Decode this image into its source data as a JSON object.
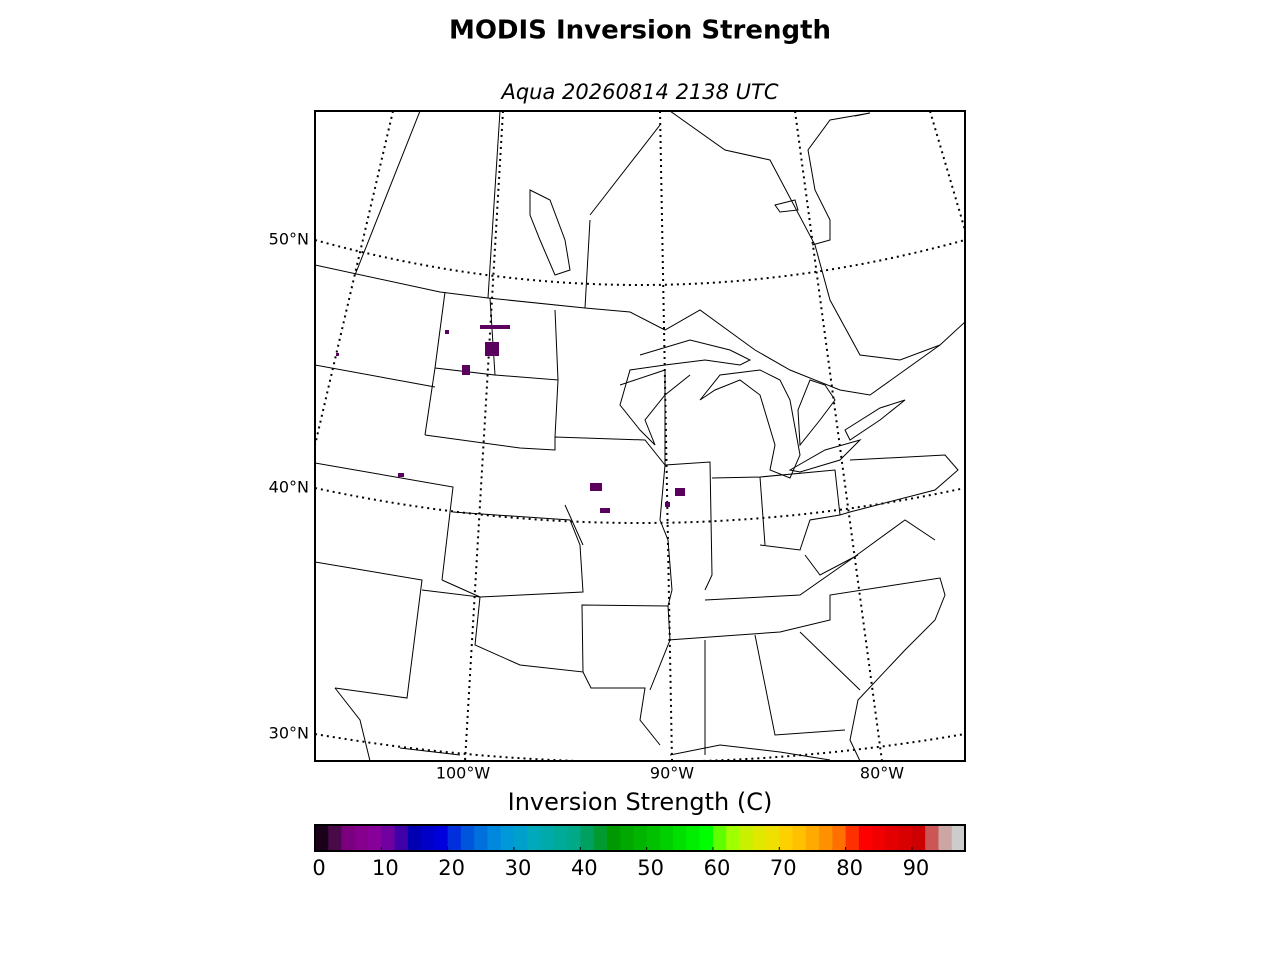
{
  "title": "MODIS Inversion Strength",
  "subtitle": "Aqua 20260814 2138 UTC",
  "map": {
    "lat_labels": [
      "50°N",
      "40°N",
      "30°N"
    ],
    "lon_labels": [
      "100°W",
      "90°W",
      "80°W"
    ]
  },
  "colorbar": {
    "label": "Inversion Strength (C)",
    "lim": [
      0,
      98
    ],
    "ticks": [
      0,
      10,
      20,
      30,
      40,
      50,
      60,
      70,
      80,
      90
    ],
    "colors": [
      "#1a0018",
      "#4a0a4a",
      "#7a007f",
      "#85008c",
      "#88009a",
      "#7000a0",
      "#4000a8",
      "#0000b0",
      "#0000c8",
      "#0000dd",
      "#0030dd",
      "#0055dd",
      "#0070dd",
      "#0088dd",
      "#0098d8",
      "#00a0cc",
      "#00aabb",
      "#00aaaa",
      "#00aa99",
      "#00aa88",
      "#00a060",
      "#009a30",
      "#009800",
      "#00a800",
      "#00b400",
      "#00c000",
      "#00d000",
      "#00e000",
      "#00ee00",
      "#00ff00",
      "#60ff00",
      "#a0ff00",
      "#c8f000",
      "#e0e800",
      "#eee000",
      "#ffd000",
      "#ffc000",
      "#ffaa00",
      "#ff9000",
      "#ff7000",
      "#ff3000",
      "#ff0000",
      "#f00000",
      "#e40000",
      "#d80000",
      "#cc0000",
      "#cc5555",
      "#cca5a5",
      "#cccccc"
    ]
  }
}
